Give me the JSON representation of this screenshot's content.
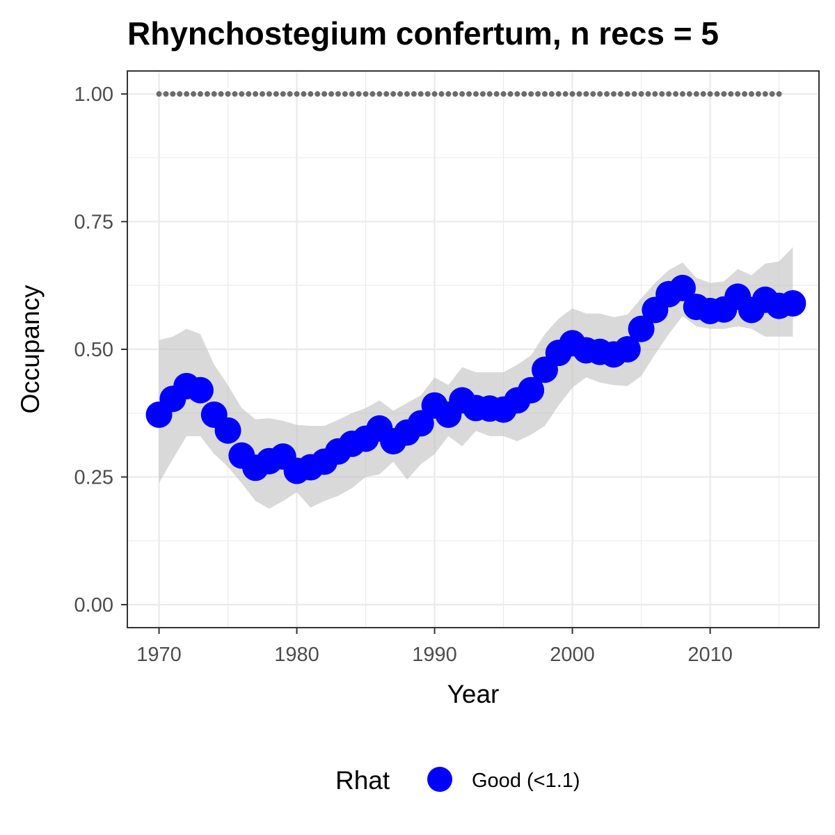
{
  "chart_data": {
    "type": "line",
    "title": "Rhynchostegium confertum, n recs = 5",
    "xlabel": "Year",
    "ylabel": "Occupancy",
    "xlim": [
      1967.7,
      2017.9
    ],
    "ylim": [
      -0.045,
      1.045
    ],
    "x_ticks": [
      1970,
      1980,
      1990,
      2000,
      2010
    ],
    "x_tick_labels": [
      "1970",
      "1980",
      "1990",
      "2000",
      "2010"
    ],
    "y_ticks": [
      0,
      0.25,
      0.5,
      0.75,
      1.0
    ],
    "y_tick_labels": [
      "0.00",
      "0.25",
      "0.50",
      "0.75",
      "1.00"
    ],
    "grid": true,
    "legend": {
      "title": "Rhat",
      "position": "bottom",
      "entries": [
        "Good (<1.1)"
      ]
    },
    "colors": {
      "points": "#0000ff",
      "ribbon": "#bfbfbf",
      "reference": "#6b6b6b",
      "grid": "#ebebeb",
      "panel_border": "#333333"
    },
    "series": [
      {
        "name": "Good (<1.1)",
        "x": [
          1970,
          1971,
          1972,
          1973,
          1974,
          1975,
          1976,
          1977,
          1978,
          1979,
          1980,
          1981,
          1982,
          1983,
          1984,
          1985,
          1986,
          1987,
          1988,
          1989,
          1990,
          1991,
          1992,
          1993,
          1994,
          1995,
          1996,
          1997,
          1998,
          1999,
          2000,
          2001,
          2002,
          2003,
          2004,
          2005,
          2006,
          2007,
          2008,
          2009,
          2010,
          2011,
          2012,
          2013,
          2014,
          2015,
          2016
        ],
        "y": [
          0.372,
          0.403,
          0.428,
          0.42,
          0.372,
          0.341,
          0.292,
          0.268,
          0.281,
          0.29,
          0.262,
          0.269,
          0.28,
          0.3,
          0.315,
          0.325,
          0.345,
          0.32,
          0.337,
          0.355,
          0.39,
          0.372,
          0.4,
          0.385,
          0.384,
          0.382,
          0.4,
          0.42,
          0.46,
          0.493,
          0.512,
          0.498,
          0.495,
          0.49,
          0.5,
          0.54,
          0.577,
          0.608,
          0.62,
          0.583,
          0.575,
          0.578,
          0.603,
          0.577,
          0.597,
          0.585,
          0.59
        ],
        "lower": [
          0.238,
          0.285,
          0.33,
          0.33,
          0.295,
          0.27,
          0.238,
          0.203,
          0.188,
          0.203,
          0.22,
          0.19,
          0.203,
          0.213,
          0.228,
          0.25,
          0.255,
          0.28,
          0.245,
          0.275,
          0.295,
          0.33,
          0.31,
          0.34,
          0.33,
          0.33,
          0.32,
          0.333,
          0.35,
          0.39,
          0.425,
          0.445,
          0.435,
          0.43,
          0.428,
          0.448,
          0.49,
          0.53,
          0.565,
          0.545,
          0.54,
          0.54,
          0.545,
          0.54,
          0.525,
          0.525,
          0.525
        ]
      }
    ],
    "upper": [
      0.518,
      0.525,
      0.54,
      0.53,
      0.47,
      0.43,
      0.385,
      0.363,
      0.365,
      0.36,
      0.352,
      0.35,
      0.35,
      0.362,
      0.375,
      0.385,
      0.4,
      0.38,
      0.395,
      0.41,
      0.445,
      0.43,
      0.465,
      0.455,
      0.455,
      0.455,
      0.47,
      0.488,
      0.53,
      0.56,
      0.58,
      0.57,
      0.57,
      0.563,
      0.568,
      0.6,
      0.63,
      0.655,
      0.67,
      0.64,
      0.63,
      0.633,
      0.657,
      0.645,
      0.668,
      0.672,
      0.7
    ],
    "reference_line": {
      "y": 1.0,
      "x_start": 1970,
      "x_end": 2015,
      "style": "dotted"
    }
  }
}
